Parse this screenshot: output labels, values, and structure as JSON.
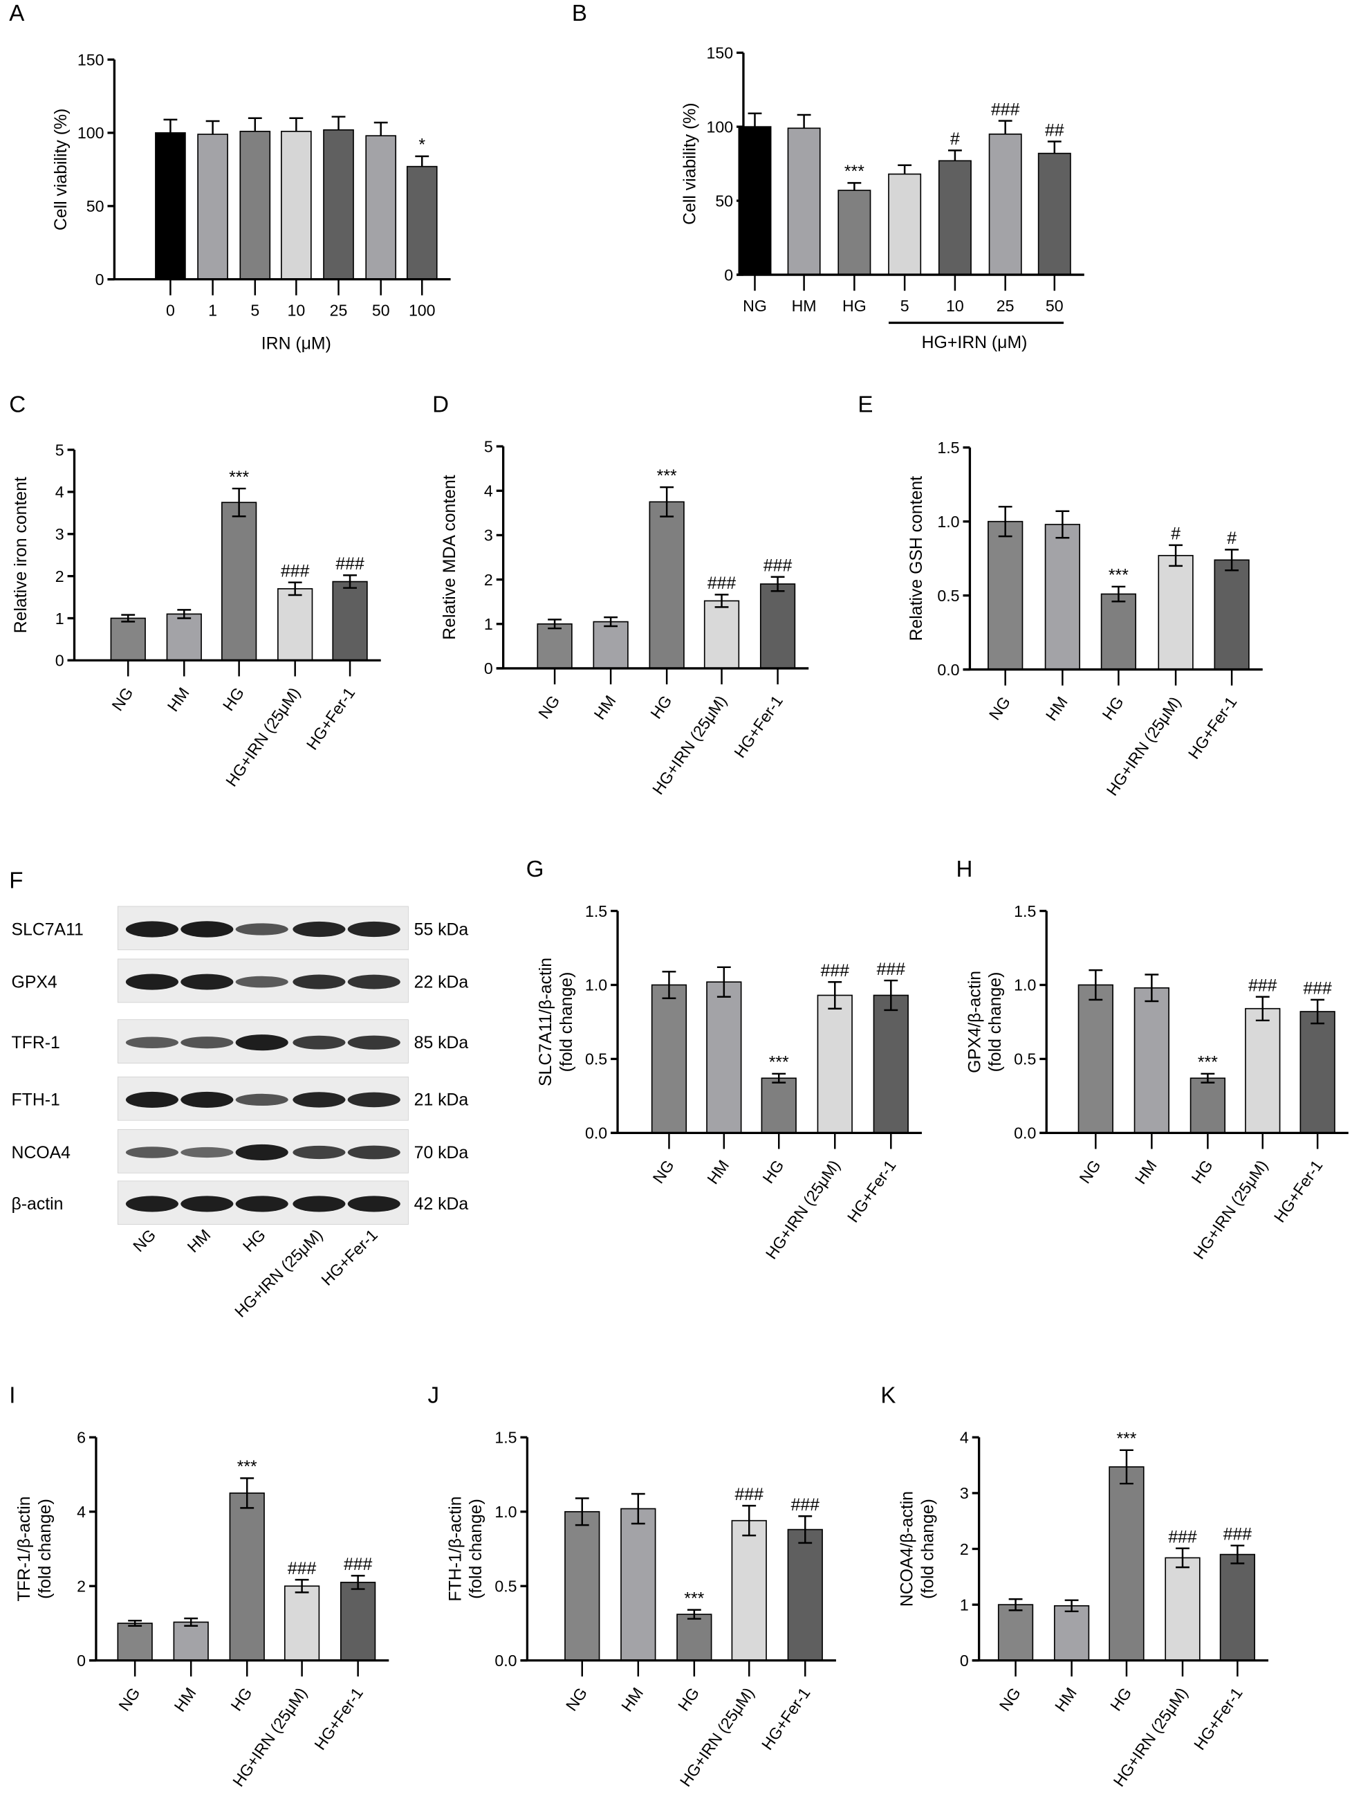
{
  "colors": {
    "black": "#000000",
    "NG": "#858585",
    "HM": "#a3a3a7",
    "HG": "#7f7f7f",
    "IRN": "#d9d9d9",
    "Fer": "#5f5f5f",
    "light_gray": "#a3a3a7"
  },
  "chart_data": [
    {
      "panel": "A",
      "type": "bar",
      "ylabel": [
        "Cell viability (%)"
      ],
      "xlabel": "IRN (μM)",
      "ylim": [
        0,
        150
      ],
      "yticks": [
        "0",
        "50",
        "100",
        "150"
      ],
      "ytick_values": [
        0,
        50,
        100,
        150
      ],
      "categories": [
        "0",
        "1",
        "5",
        "10",
        "25",
        "50",
        "100"
      ],
      "values": [
        100,
        99,
        101,
        101,
        102,
        98,
        77
      ],
      "errors": [
        9,
        9,
        9,
        9,
        9,
        9,
        7
      ],
      "marks": [
        "",
        "",
        "",
        "",
        "",
        "",
        "*"
      ],
      "bar_colors": [
        "#000000",
        "#a3a3a7",
        "#808080",
        "#d6d6d6",
        "#606060",
        "#a3a3a7",
        "#606060"
      ]
    },
    {
      "panel": "B",
      "type": "bar",
      "ylabel": [
        "Cell viability (%)"
      ],
      "xlabel": "HG+IRN (μM)",
      "ylim": [
        0,
        150
      ],
      "yticks": [
        "0",
        "50",
        "100",
        "150"
      ],
      "ytick_values": [
        0,
        50,
        100,
        150
      ],
      "categories": [
        "NG",
        "HM",
        "HG",
        "5",
        "10",
        "25",
        "50"
      ],
      "values": [
        100,
        99,
        57,
        68,
        77,
        95,
        82
      ],
      "errors": [
        9,
        9,
        5,
        6,
        7,
        9,
        8
      ],
      "marks": [
        "",
        "",
        "***",
        "",
        "#",
        "###",
        "##"
      ],
      "bar_colors": [
        "#000000",
        "#a3a3a7",
        "#808080",
        "#d6d6d6",
        "#606060",
        "#a3a3a7",
        "#606060"
      ]
    },
    {
      "panel": "C",
      "type": "bar",
      "ylabel": [
        "Relative iron content"
      ],
      "ylim": [
        0,
        5
      ],
      "yticks": [
        "0",
        "1",
        "2",
        "3",
        "4",
        "5"
      ],
      "ytick_values": [
        0,
        1,
        2,
        3,
        4,
        5
      ],
      "categories": [
        "NG",
        "HM",
        "HG",
        "HG+IRN (25μM)",
        "HG+Fer-1"
      ],
      "values": [
        1.0,
        1.1,
        3.75,
        1.7,
        1.87
      ],
      "errors": [
        0.08,
        0.1,
        0.33,
        0.15,
        0.15
      ],
      "marks": [
        "",
        "",
        "***",
        "###",
        "###"
      ]
    },
    {
      "panel": "D",
      "type": "bar",
      "ylabel": [
        "Relative MDA content"
      ],
      "ylim": [
        0,
        5
      ],
      "yticks": [
        "0",
        "1",
        "2",
        "3",
        "4",
        "5"
      ],
      "ytick_values": [
        0,
        1,
        2,
        3,
        4,
        5
      ],
      "categories": [
        "NG",
        "HM",
        "HG",
        "HG+IRN (25μM)",
        "HG+Fer-1"
      ],
      "values": [
        1.0,
        1.05,
        3.75,
        1.52,
        1.9
      ],
      "errors": [
        0.1,
        0.1,
        0.33,
        0.14,
        0.16
      ],
      "marks": [
        "",
        "",
        "***",
        "###",
        "###"
      ]
    },
    {
      "panel": "E",
      "type": "bar",
      "ylabel": [
        "Relative GSH content"
      ],
      "ylim": [
        0,
        1.5
      ],
      "yticks": [
        "0.0",
        "0.5",
        "1.0",
        "1.5"
      ],
      "ytick_values": [
        0,
        0.5,
        1,
        1.5
      ],
      "categories": [
        "NG",
        "HM",
        "HG",
        "HG+IRN (25μM)",
        "HG+Fer-1"
      ],
      "values": [
        1.0,
        0.98,
        0.51,
        0.77,
        0.74
      ],
      "errors": [
        0.1,
        0.09,
        0.05,
        0.07,
        0.07
      ],
      "marks": [
        "",
        "",
        "***",
        "#",
        "#"
      ]
    },
    {
      "panel": "G",
      "type": "bar",
      "ylabel": [
        "SLC7A11/β-actin",
        "(fold change)"
      ],
      "ylim": [
        0,
        1.5
      ],
      "yticks": [
        "0.0",
        "0.5",
        "1.0",
        "1.5"
      ],
      "ytick_values": [
        0,
        0.5,
        1,
        1.5
      ],
      "categories": [
        "NG",
        "HM",
        "HG",
        "HG+IRN (25μM)",
        "HG+Fer-1"
      ],
      "values": [
        1.0,
        1.02,
        0.37,
        0.93,
        0.93
      ],
      "errors": [
        0.09,
        0.1,
        0.03,
        0.09,
        0.1
      ],
      "marks": [
        "",
        "",
        "***",
        "###",
        "###"
      ]
    },
    {
      "panel": "H",
      "type": "bar",
      "ylabel": [
        "GPX4/β-actin",
        "(fold change)"
      ],
      "ylim": [
        0,
        1.5
      ],
      "yticks": [
        "0.0",
        "0.5",
        "1.0",
        "1.5"
      ],
      "ytick_values": [
        0,
        0.5,
        1,
        1.5
      ],
      "categories": [
        "NG",
        "HM",
        "HG",
        "HG+IRN (25μM)",
        "HG+Fer-1"
      ],
      "values": [
        1.0,
        0.98,
        0.37,
        0.84,
        0.82
      ],
      "errors": [
        0.1,
        0.09,
        0.03,
        0.08,
        0.08
      ],
      "marks": [
        "",
        "",
        "***",
        "###",
        "###"
      ]
    },
    {
      "panel": "I",
      "type": "bar",
      "ylabel": [
        "TFR-1/β-actin",
        "(fold change)"
      ],
      "ylim": [
        0,
        6
      ],
      "yticks": [
        "0",
        "2",
        "4",
        "6"
      ],
      "ytick_values": [
        0,
        2,
        4,
        6
      ],
      "categories": [
        "NG",
        "HM",
        "HG",
        "HG+IRN (25μM)",
        "HG+Fer-1"
      ],
      "values": [
        1.0,
        1.03,
        4.5,
        2.0,
        2.1
      ],
      "errors": [
        0.07,
        0.1,
        0.4,
        0.17,
        0.18
      ],
      "marks": [
        "",
        "",
        "***",
        "###",
        "###"
      ]
    },
    {
      "panel": "J",
      "type": "bar",
      "ylabel": [
        "FTH-1/β-actin",
        "(fold change)"
      ],
      "ylim": [
        0,
        1.5
      ],
      "yticks": [
        "0.0",
        "0.5",
        "1.0",
        "1.5"
      ],
      "ytick_values": [
        0,
        0.5,
        1,
        1.5
      ],
      "categories": [
        "NG",
        "HM",
        "HG",
        "HG+IRN (25μM)",
        "HG+Fer-1"
      ],
      "values": [
        1.0,
        1.02,
        0.31,
        0.94,
        0.88
      ],
      "errors": [
        0.09,
        0.1,
        0.03,
        0.1,
        0.09
      ],
      "marks": [
        "",
        "",
        "***",
        "###",
        "###"
      ]
    },
    {
      "panel": "K",
      "type": "bar",
      "ylabel": [
        "NCOA4/β-actin",
        "(fold change)"
      ],
      "ylim": [
        0,
        4
      ],
      "yticks": [
        "0",
        "1",
        "2",
        "3",
        "4"
      ],
      "ytick_values": [
        0,
        1,
        2,
        3,
        4
      ],
      "categories": [
        "NG",
        "HM",
        "HG",
        "HG+IRN (25μM)",
        "HG+Fer-1"
      ],
      "values": [
        1.0,
        0.98,
        3.47,
        1.84,
        1.9
      ],
      "errors": [
        0.1,
        0.1,
        0.3,
        0.17,
        0.16
      ],
      "marks": [
        "",
        "",
        "***",
        "###",
        "###"
      ]
    }
  ],
  "western_blot": {
    "panel": "F",
    "lanes": [
      "NG",
      "HM",
      "HG",
      "HG+IRN (25μM)",
      "HG+Fer-1"
    ],
    "proteins": [
      {
        "name": "SLC7A11",
        "kda": "55 kDa",
        "intensity": [
          1.0,
          1.02,
          0.55,
          0.93,
          0.93
        ]
      },
      {
        "name": "GPX4",
        "kda": "22 kDa",
        "intensity": [
          1.0,
          0.98,
          0.5,
          0.84,
          0.82
        ]
      },
      {
        "name": "TFR-1",
        "kda": "85 kDa",
        "intensity": [
          0.5,
          0.55,
          1.0,
          0.75,
          0.78
        ]
      },
      {
        "name": "FTH-1",
        "kda": "21 kDa",
        "intensity": [
          1.0,
          1.0,
          0.55,
          0.94,
          0.88
        ]
      },
      {
        "name": "NCOA4",
        "kda": "70 kDa",
        "intensity": [
          0.5,
          0.4,
          1.0,
          0.7,
          0.75
        ]
      },
      {
        "name": "β-actin",
        "kda": "42 kDa",
        "intensity": [
          1.0,
          1.0,
          1.0,
          1.0,
          1.0
        ]
      }
    ]
  }
}
